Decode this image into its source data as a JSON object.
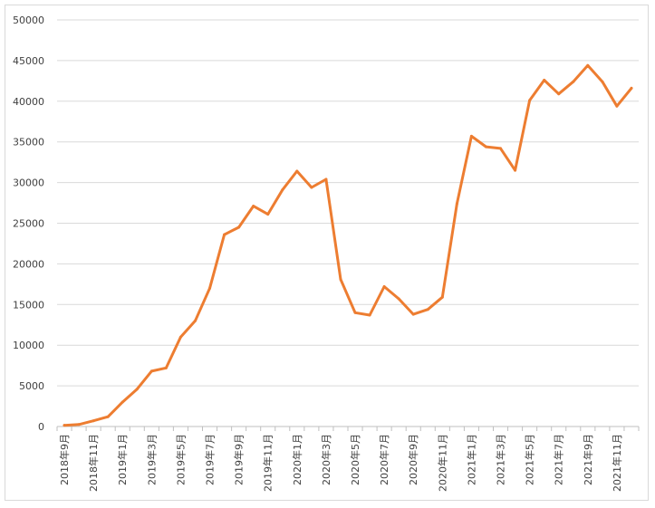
{
  "chart_data": {
    "type": "line",
    "title": "",
    "xlabel": "",
    "ylabel": "",
    "ylim": [
      0,
      50000
    ],
    "yticks": [
      0,
      5000,
      10000,
      15000,
      20000,
      25000,
      30000,
      35000,
      40000,
      45000,
      50000
    ],
    "grid": true,
    "legend": "none",
    "line_color": "#ED7D31",
    "x": [
      "2018年9月",
      "2018年10月",
      "2018年11月",
      "2018年12月",
      "2019年1月",
      "2019年2月",
      "2019年3月",
      "2019年4月",
      "2019年5月",
      "2019年6月",
      "2019年7月",
      "2019年8月",
      "2019年9月",
      "2019年10月",
      "2019年11月",
      "2019年12月",
      "2020年1月",
      "2020年2月",
      "2020年3月",
      "2020年4月",
      "2020年5月",
      "2020年6月",
      "2020年7月",
      "2020年8月",
      "2020年9月",
      "2020年10月",
      "2020年11月",
      "2020年12月",
      "2021年1月",
      "2021年2月",
      "2021年3月",
      "2021年4月",
      "2021年5月",
      "2021年6月",
      "2021年7月",
      "2021年8月",
      "2021年9月",
      "2021年10月",
      "2021年11月",
      "2021年12月"
    ],
    "x_tick_labels": [
      "2018年9月",
      "2018年11月",
      "2019年1月",
      "2019年3月",
      "2019年5月",
      "2019年7月",
      "2019年9月",
      "2019年11月",
      "2020年1月",
      "2020年3月",
      "2020年5月",
      "2020年7月",
      "2020年9月",
      "2020年11月",
      "2021年1月",
      "2021年3月",
      "2021年5月",
      "2021年7月",
      "2021年9月",
      "2021年11月"
    ],
    "series": [
      {
        "values": [
          150,
          250,
          700,
          1200,
          3000,
          4600,
          6800,
          7200,
          11000,
          13000,
          17000,
          23600,
          24500,
          27100,
          26100,
          29100,
          31400,
          29400,
          30400,
          18100,
          14000,
          13700,
          17200,
          15700,
          13800,
          14400,
          15900,
          27400,
          35700,
          34400,
          34200,
          31500,
          40100,
          42600,
          40900,
          42400,
          44400,
          42400,
          39400,
          41600
        ]
      }
    ]
  }
}
